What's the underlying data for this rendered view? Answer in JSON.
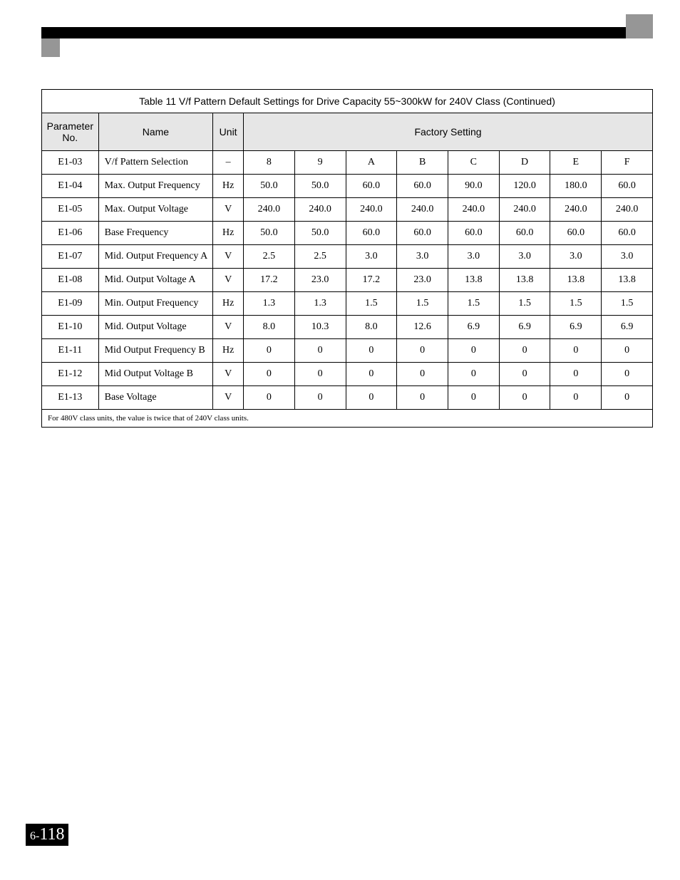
{
  "table": {
    "caption": "Table 11 V/f Pattern Default Settings for Drive Capacity 55~300kW for 240V Class (Continued)",
    "header": {
      "param_no": "Parameter No.",
      "name": "Name",
      "unit": "Unit",
      "factory_setting": "Factory Setting"
    },
    "rows": [
      {
        "param": "E1-03",
        "name": "V/f Pattern Selection",
        "unit": "–",
        "vals": [
          "8",
          "9",
          "A",
          "B",
          "C",
          "D",
          "E",
          "F"
        ]
      },
      {
        "param": "E1-04",
        "name": "Max. Output Frequency",
        "unit": "Hz",
        "vals": [
          "50.0",
          "50.0",
          "60.0",
          "60.0",
          "90.0",
          "120.0",
          "180.0",
          "60.0"
        ]
      },
      {
        "param": "E1-05",
        "name": "Max. Output Voltage",
        "unit": "V",
        "vals": [
          "240.0",
          "240.0",
          "240.0",
          "240.0",
          "240.0",
          "240.0",
          "240.0",
          "240.0"
        ]
      },
      {
        "param": "E1-06",
        "name": "Base Frequency",
        "unit": "Hz",
        "vals": [
          "50.0",
          "50.0",
          "60.0",
          "60.0",
          "60.0",
          "60.0",
          "60.0",
          "60.0"
        ]
      },
      {
        "param": "E1-07",
        "name": "Mid. Output Frequency A",
        "unit": "V",
        "vals": [
          "2.5",
          "2.5",
          "3.0",
          "3.0",
          "3.0",
          "3.0",
          "3.0",
          "3.0"
        ]
      },
      {
        "param": "E1-08",
        "name": "Mid. Output Voltage A",
        "unit": "V",
        "vals": [
          "17.2",
          "23.0",
          "17.2",
          "23.0",
          "13.8",
          "13.8",
          "13.8",
          "13.8"
        ]
      },
      {
        "param": "E1-09",
        "name": "Min. Output Frequency",
        "unit": "Hz",
        "vals": [
          "1.3",
          "1.3",
          "1.5",
          "1.5",
          "1.5",
          "1.5",
          "1.5",
          "1.5"
        ]
      },
      {
        "param": "E1-10",
        "name": "Mid. Output Voltage",
        "unit": "V",
        "vals": [
          "8.0",
          "10.3",
          "8.0",
          "12.6",
          "6.9",
          "6.9",
          "6.9",
          "6.9"
        ]
      },
      {
        "param": "E1-11",
        "name": "Mid Output Frequency B",
        "unit": "Hz",
        "vals": [
          "0",
          "0",
          "0",
          "0",
          "0",
          "0",
          "0",
          "0"
        ]
      },
      {
        "param": "E1-12",
        "name": "Mid Output Voltage B",
        "unit": "V",
        "vals": [
          "0",
          "0",
          "0",
          "0",
          "0",
          "0",
          "0",
          "0"
        ]
      },
      {
        "param": "E1-13",
        "name": "Base Voltage",
        "unit": "V",
        "vals": [
          "0",
          "0",
          "0",
          "0",
          "0",
          "0",
          "0",
          "0"
        ]
      }
    ],
    "footnote": "For 480V class units, the value is twice that of 240V class units."
  },
  "page": {
    "prefix": "6-",
    "number": "118"
  },
  "colors": {
    "header_bg": "#e6e6e6",
    "border": "#000000",
    "black_bar": "#000000",
    "gray_square": "#969696",
    "page_bg": "#ffffff",
    "page_number_bg": "#000000",
    "page_number_fg": "#ffffff"
  }
}
